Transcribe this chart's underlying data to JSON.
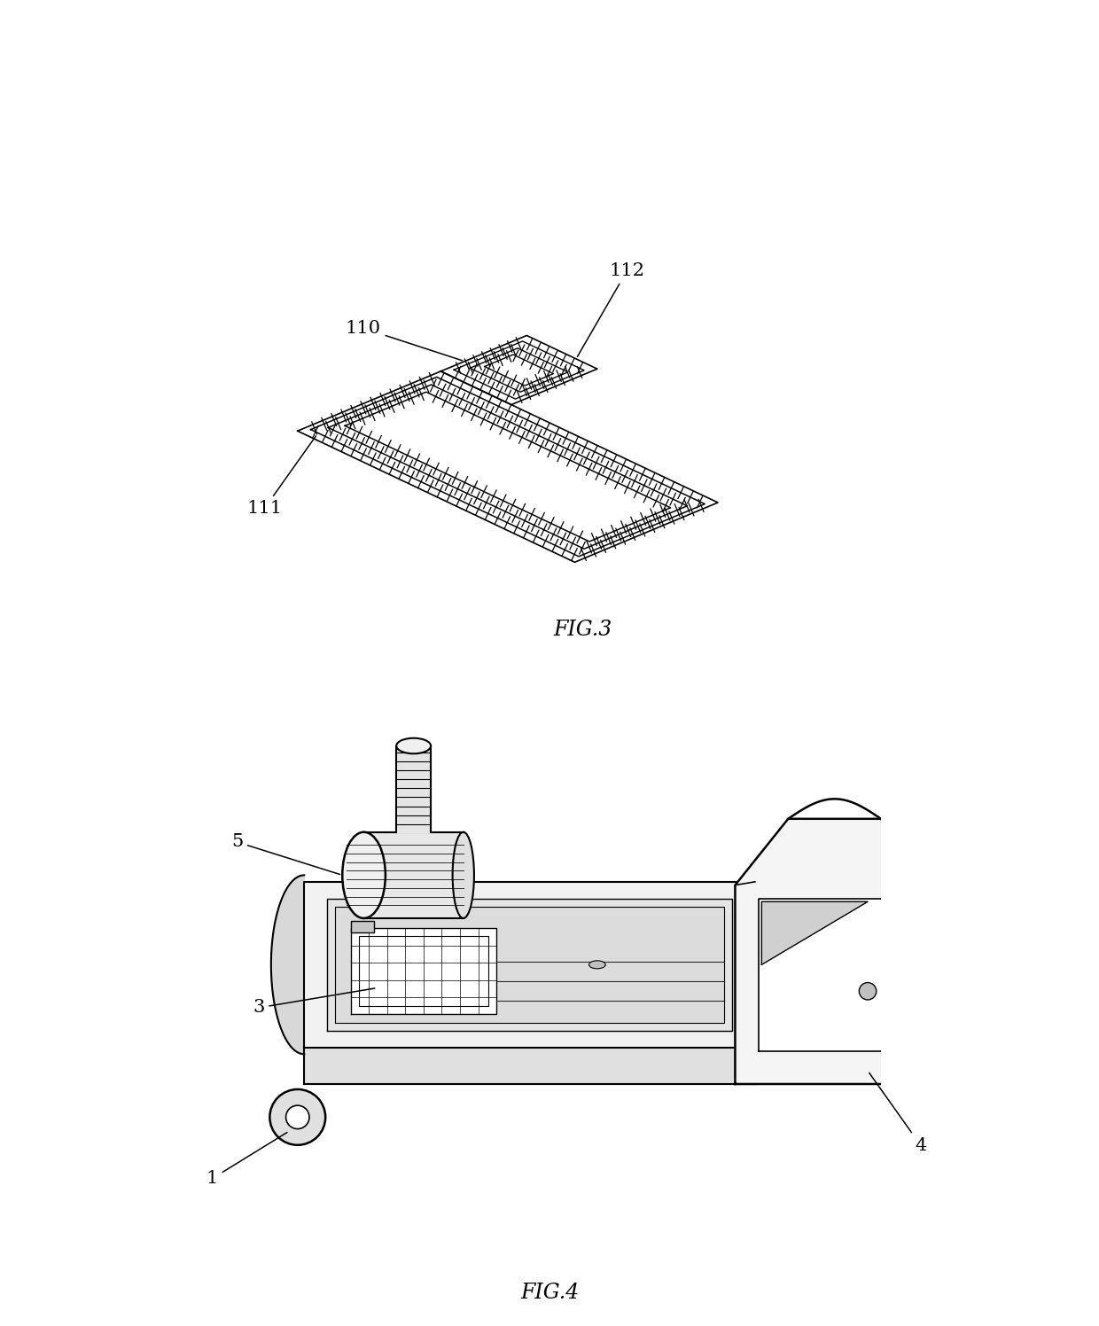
{
  "bg_color": "#ffffff",
  "line_color": "#000000",
  "fig3_label": "FIG.3",
  "fig4_label": "FIG.4",
  "label_110": "110",
  "label_111": "111",
  "label_112": "112",
  "label_1": "1",
  "label_3": "3",
  "label_4": "4",
  "label_5": "5",
  "figsize": [
    12.4,
    14.96
  ],
  "dpi": 100
}
